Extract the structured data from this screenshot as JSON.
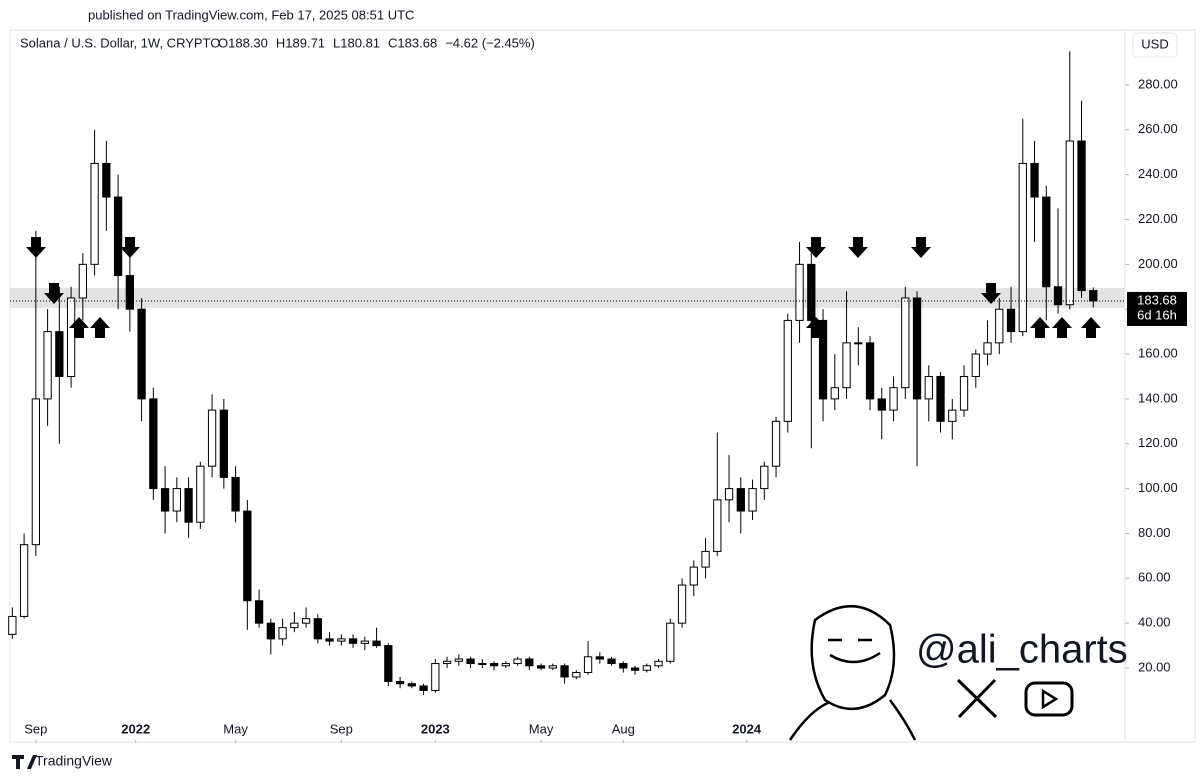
{
  "published": "published on TradingView.com, Feb 17, 2025 08:51 UTC",
  "brand": "TradingView",
  "watermark": "@ali_charts",
  "chart_data": {
    "type": "candlestick",
    "title": "Solana / U.S. Dollar, 1W, CRYPTO",
    "ohlc_header": [
      "O188.30",
      "H189.71",
      "L180.81",
      "C183.68",
      "−4.62 (−2.45%)"
    ],
    "currency": "USD",
    "price_tag": "183.68",
    "countdown": "6d 16h",
    "up_color": "#ffffff",
    "down_color": "#000000",
    "support_zone": [
      180.6,
      189.5
    ],
    "open": [
      35,
      43,
      75,
      140,
      170,
      150,
      185,
      200,
      245,
      230,
      195,
      180,
      140,
      100,
      90,
      100,
      85,
      110,
      135,
      105,
      90,
      50,
      40,
      33,
      38,
      40,
      42,
      33,
      32,
      33,
      31,
      32,
      30,
      14,
      13,
      12,
      10,
      22,
      23,
      24,
      22,
      22,
      21,
      22,
      24,
      21,
      20,
      21,
      16,
      18,
      25,
      24,
      22,
      20,
      19,
      21,
      23,
      40,
      57,
      65,
      72,
      95,
      100,
      90,
      100,
      110,
      130,
      175,
      200,
      175,
      140,
      145,
      165,
      165,
      140,
      135,
      145,
      185,
      140,
      150,
      130,
      135,
      150,
      160,
      165,
      180,
      170,
      245,
      230,
      190,
      182,
      255,
      188.3
    ],
    "high": [
      47,
      80,
      215,
      180,
      190,
      190,
      205,
      260,
      255,
      240,
      205,
      185,
      145,
      110,
      105,
      105,
      112,
      142,
      140,
      110,
      95,
      55,
      42,
      42,
      45,
      47,
      44,
      36,
      35,
      35,
      34,
      38,
      31,
      16,
      14,
      13,
      24,
      25,
      26,
      25,
      24,
      23,
      23,
      25,
      25,
      22,
      22,
      22,
      19,
      32,
      27,
      25,
      23,
      21,
      22,
      24,
      42,
      60,
      68,
      78,
      125,
      115,
      105,
      104,
      112,
      132,
      178,
      210,
      205,
      180,
      160,
      188,
      172,
      168,
      145,
      150,
      190,
      188,
      155,
      152,
      140,
      155,
      162,
      175,
      185,
      190,
      265,
      255,
      235,
      225,
      295,
      273,
      189.71
    ],
    "low": [
      33,
      42,
      70,
      128,
      120,
      145,
      175,
      195,
      215,
      180,
      170,
      130,
      95,
      80,
      85,
      78,
      82,
      105,
      100,
      85,
      37,
      38,
      26,
      30,
      36,
      38,
      31,
      30,
      30,
      29,
      28,
      29,
      12,
      11,
      11,
      8,
      9,
      20,
      21,
      20,
      20,
      19,
      20,
      21,
      19,
      19,
      19,
      13,
      15,
      17,
      22,
      21,
      18,
      17,
      18,
      20,
      22,
      38,
      52,
      60,
      70,
      85,
      80,
      86,
      95,
      105,
      125,
      165,
      118,
      130,
      135,
      140,
      155,
      135,
      122,
      130,
      140,
      110,
      130,
      125,
      122,
      132,
      145,
      155,
      160,
      165,
      168,
      210,
      175,
      178,
      180,
      185,
      180.81
    ],
    "close": [
      43,
      75,
      140,
      170,
      150,
      185,
      200,
      245,
      230,
      195,
      180,
      140,
      100,
      90,
      100,
      85,
      110,
      135,
      105,
      90,
      50,
      40,
      33,
      38,
      40,
      42,
      33,
      32,
      33,
      31,
      32,
      30,
      14,
      13,
      12,
      10,
      22,
      23,
      24,
      22,
      22,
      21,
      22,
      24,
      21,
      20,
      21,
      16,
      18,
      25,
      24,
      22,
      20,
      19,
      21,
      23,
      40,
      57,
      65,
      72,
      95,
      100,
      90,
      100,
      110,
      130,
      175,
      200,
      175,
      140,
      145,
      165,
      165,
      140,
      135,
      145,
      185,
      140,
      150,
      130,
      135,
      150,
      160,
      165,
      180,
      170,
      245,
      230,
      190,
      182,
      255,
      188.3,
      183.68
    ],
    "xlim": [
      -0.2,
      94.7
    ],
    "xticks": [
      {
        "value": 2,
        "label": "Sep"
      },
      {
        "value": 10.5,
        "label": "2022"
      },
      {
        "value": 19,
        "label": "May"
      },
      {
        "value": 28,
        "label": "Sep"
      },
      {
        "value": 36,
        "label": "2023"
      },
      {
        "value": 45,
        "label": "May"
      },
      {
        "value": 52,
        "label": "Aug"
      },
      {
        "value": 62.5,
        "label": "2024"
      }
    ],
    "ylim": [
      -12.1,
      304.5
    ],
    "yticks": [
      {
        "value": 20,
        "label": "20.00"
      },
      {
        "value": 40,
        "label": "40.00"
      },
      {
        "value": 60,
        "label": "60.00"
      },
      {
        "value": 80,
        "label": "80.00"
      },
      {
        "value": 100,
        "label": "100.00"
      },
      {
        "value": 120,
        "label": "120.00"
      },
      {
        "value": 140,
        "label": "140.00"
      },
      {
        "value": 160,
        "label": "160.00"
      },
      {
        "value": 180,
        "label": "180.00"
      },
      {
        "value": 200,
        "label": "200.00"
      },
      {
        "value": 220,
        "label": "220.00"
      },
      {
        "value": 240,
        "label": "240.00"
      },
      {
        "value": 260,
        "label": "260.00"
      },
      {
        "value": 280,
        "label": "280.00"
      }
    ]
  }
}
